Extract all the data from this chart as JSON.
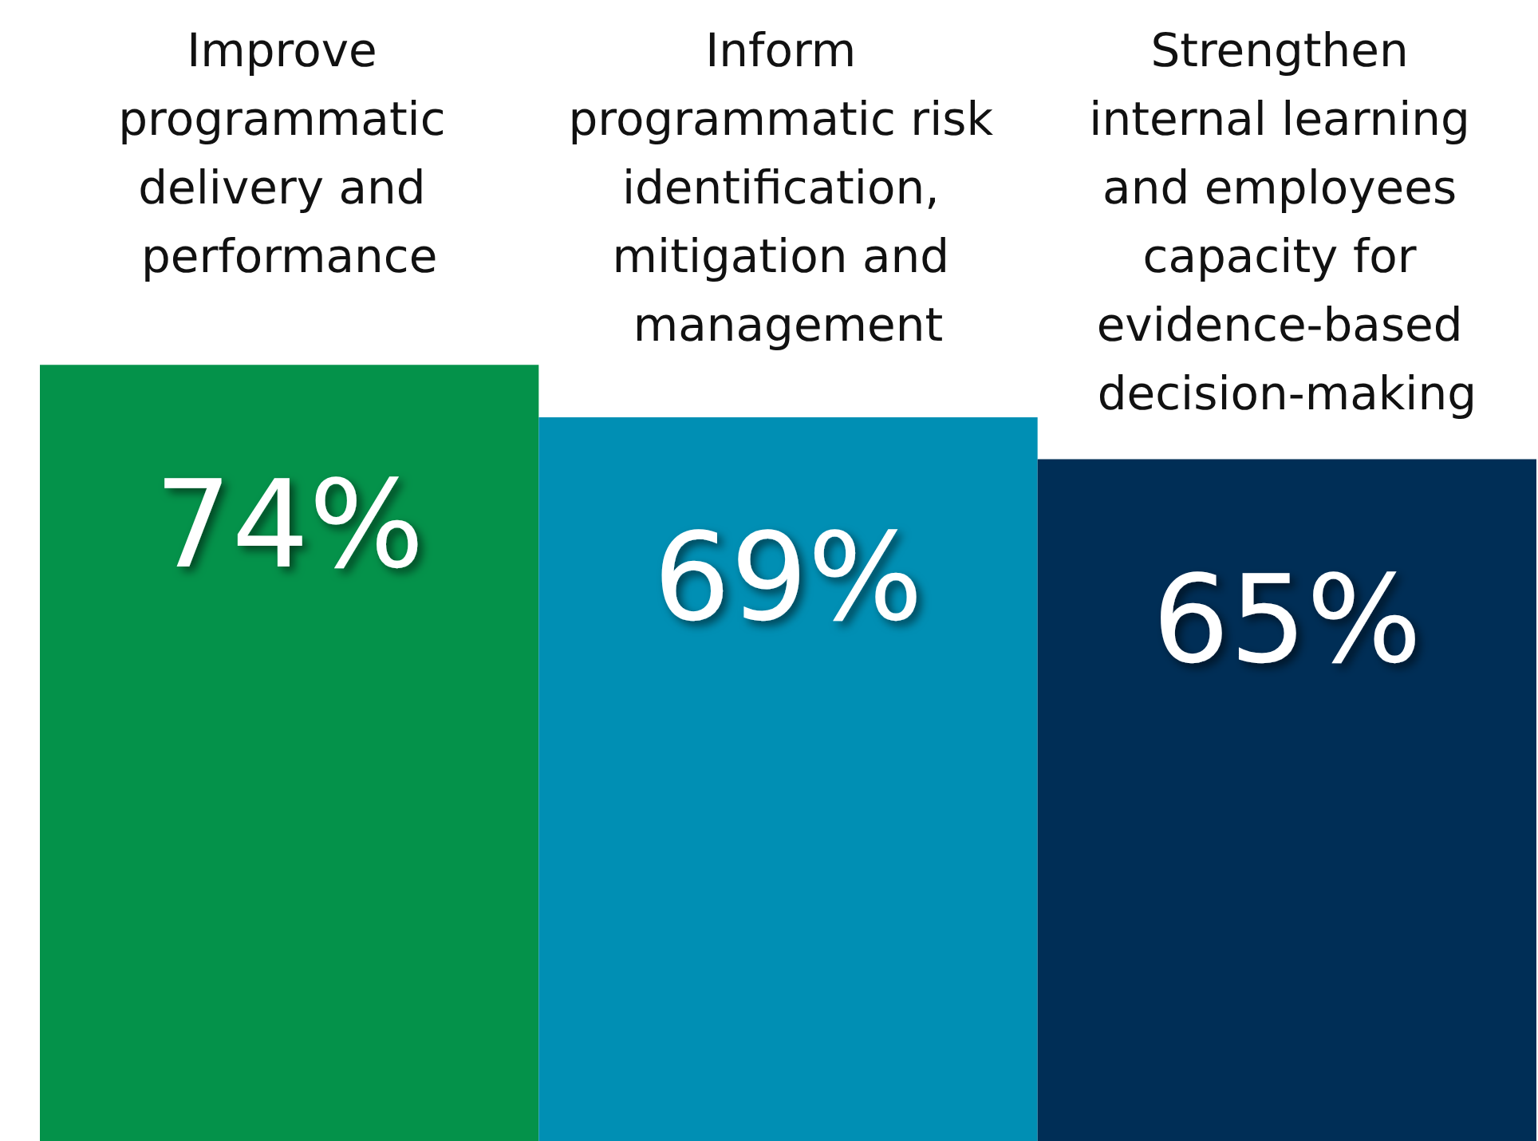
{
  "chart_data": {
    "type": "bar",
    "categories": [
      "Improve programmatic delivery and performance",
      "Inform programmatic risk identification, mitigation and management",
      "Strengthen internal learning and employees capacity for evidence-based decision-making"
    ],
    "values": [
      74,
      69,
      65
    ],
    "colors": [
      "#04924a",
      "#008fb4",
      "#002e56"
    ],
    "value_labels": [
      "74%",
      "69%",
      "65%"
    ],
    "tick_labels": "x"
  }
}
